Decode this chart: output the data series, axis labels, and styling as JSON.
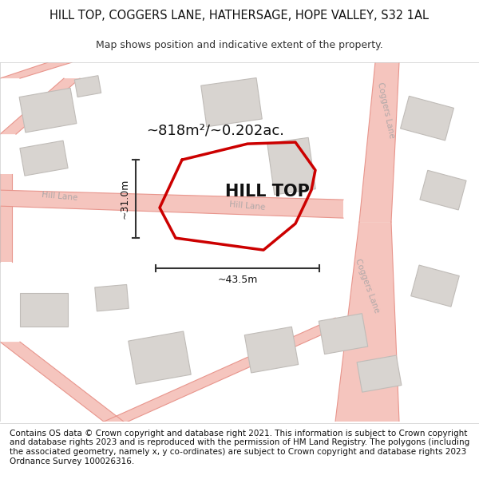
{
  "title_line1": "HILL TOP, COGGERS LANE, HATHERSAGE, HOPE VALLEY, S32 1AL",
  "title_line2": "Map shows position and indicative extent of the property.",
  "footer_text": "Contains OS data © Crown copyright and database right 2021. This information is subject to Crown copyright and database rights 2023 and is reproduced with the permission of HM Land Registry. The polygons (including the associated geometry, namely x, y co-ordinates) are subject to Crown copyright and database rights 2023 Ordnance Survey 100026316.",
  "area_label": "~818m²/~0.202ac.",
  "width_label": "~43.5m",
  "height_label": "~31.0m",
  "property_name": "HILL TOP",
  "map_bg": "#ffffff",
  "road_fill": "#f5c5be",
  "road_edge": "#e8958c",
  "building_fill": "#d8d4d0",
  "building_edge": "#c0bcb8",
  "plot_color": "#cc0000",
  "dim_color": "#333333",
  "road_label_color": "#b0a8a8",
  "title_fontsize": 10.5,
  "subtitle_fontsize": 9,
  "footer_fontsize": 7.5,
  "area_fontsize": 13,
  "name_fontsize": 15,
  "dim_fontsize": 9,
  "road_label_fontsize": 7.5
}
